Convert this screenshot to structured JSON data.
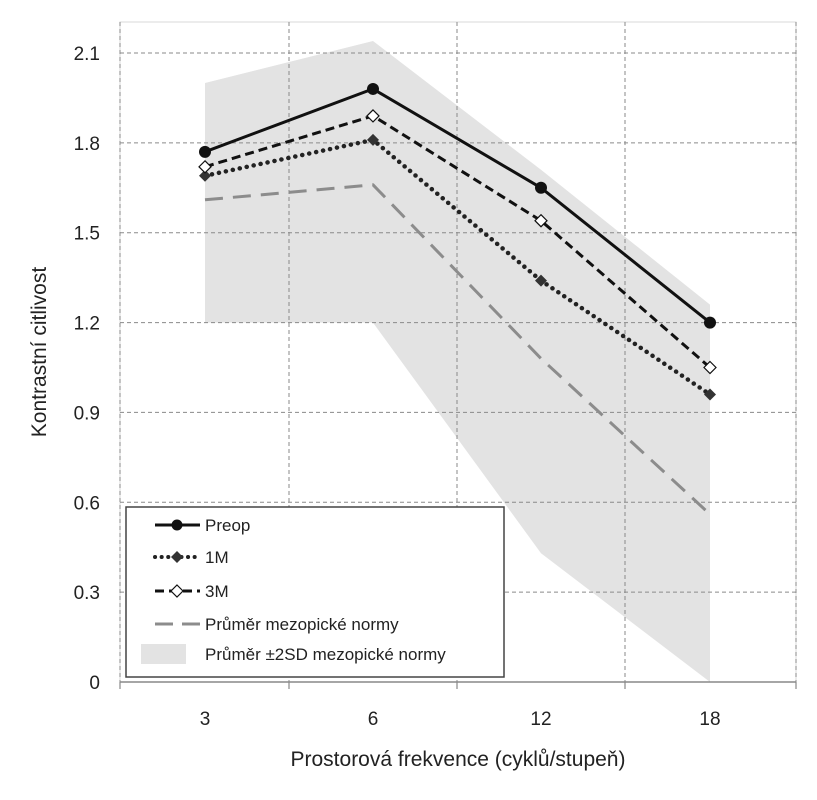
{
  "chart_data": {
    "type": "line",
    "title": "",
    "xlabel": "Prostorová frekvence  (cyklů/stupeň)",
    "ylabel": "Kontrastní citlivost",
    "categories": [
      "3",
      "6",
      "12",
      "18"
    ],
    "ylim": [
      0,
      2.1
    ],
    "yticks": [
      "0",
      "0.3",
      "0.6",
      "0.9",
      "1.2",
      "1.5",
      "1.8",
      "2.1"
    ],
    "grid": true,
    "legend_position": "bottom-left",
    "series": [
      {
        "name": "Preop",
        "values": [
          1.77,
          1.98,
          1.65,
          1.2
        ],
        "line_style": "solid",
        "marker": "filled-circle",
        "color": "#111111"
      },
      {
        "name": "1M",
        "values": [
          1.69,
          1.81,
          1.34,
          0.96
        ],
        "line_style": "dotted",
        "marker": "filled-diamond",
        "color": "#222222"
      },
      {
        "name": "3M",
        "values": [
          1.72,
          1.89,
          1.54,
          1.05
        ],
        "line_style": "dashed",
        "marker": "open-diamond",
        "color": "#111111"
      },
      {
        "name": "Průměr mezopické normy",
        "values": [
          1.61,
          1.66,
          1.08,
          0.56
        ],
        "line_style": "long-dash",
        "marker": "none",
        "color": "#8c8c8c"
      }
    ],
    "band": {
      "name": "Průměr ±2SD mezopické normy",
      "upper": [
        2.0,
        2.14,
        1.71,
        1.26
      ],
      "lower": [
        1.2,
        1.2,
        0.43,
        0.0
      ],
      "color": "#e3e3e3"
    }
  }
}
